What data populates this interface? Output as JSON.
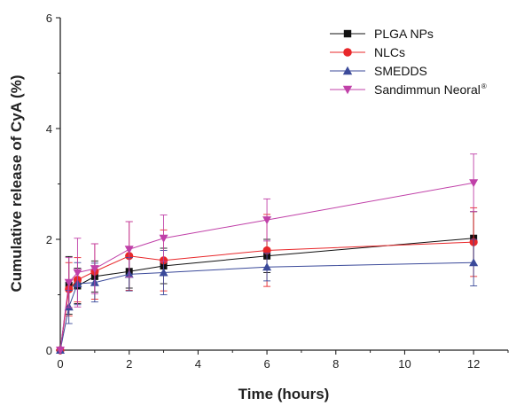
{
  "chart_data": {
    "type": "line",
    "xlabel": "Time (hours)",
    "ylabel": "Cumulative release of  CyA (%)",
    "xlim": [
      0,
      13
    ],
    "ylim": [
      0,
      6
    ],
    "xticks": [
      0,
      2,
      4,
      6,
      8,
      10,
      12
    ],
    "yticks": [
      0,
      2,
      4,
      6
    ],
    "grid": false,
    "legend_position": "top-right",
    "x": [
      0,
      0.25,
      0.5,
      1,
      2,
      3,
      6,
      12
    ],
    "series": [
      {
        "name": "PLGA NPs",
        "marker": "square",
        "color": "#111111",
        "values": [
          0,
          1.17,
          1.16,
          1.33,
          1.42,
          1.52,
          1.7,
          2.02
        ],
        "errors": [
          0,
          0.52,
          0.32,
          0.28,
          0.3,
          0.32,
          0.3,
          0.48
        ]
      },
      {
        "name": "NLCs",
        "marker": "circle",
        "color": "#e8272a",
        "values": [
          0,
          1.1,
          1.27,
          1.42,
          1.7,
          1.62,
          1.8,
          1.95
        ],
        "errors": [
          0,
          0.48,
          0.4,
          0.5,
          0.62,
          0.55,
          0.65,
          0.62
        ]
      },
      {
        "name": "SMEDDS",
        "marker": "triangle-up",
        "color": "#3b4a9a",
        "values": [
          0,
          0.78,
          1.2,
          1.22,
          1.37,
          1.4,
          1.5,
          1.58
        ],
        "errors": [
          0,
          0.3,
          0.38,
          0.35,
          0.3,
          0.4,
          0.25,
          0.42
        ]
      },
      {
        "name": "Sandimmun Neoral",
        "name_superscript": "®",
        "marker": "triangle-down",
        "color": "#c040a8",
        "values": [
          0,
          1.22,
          1.4,
          1.47,
          1.82,
          2.02,
          2.35,
          3.02
        ],
        "errors": [
          0,
          0.45,
          0.62,
          0.45,
          0.5,
          0.42,
          0.38,
          0.52
        ]
      }
    ]
  }
}
